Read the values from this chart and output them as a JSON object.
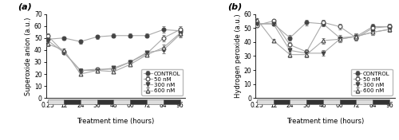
{
  "x_ticks": [
    0.25,
    12,
    24,
    36,
    48,
    60,
    72,
    84,
    96
  ],
  "x_positions": [
    0.25,
    12,
    24,
    36,
    48,
    60,
    72,
    84,
    96
  ],
  "panel_a": {
    "title": "(a)",
    "ylabel": "Superoxide anion (a.u.)",
    "xlabel": "Treatment time (hours)",
    "ylim": [
      0,
      70
    ],
    "yticks": [
      0,
      10,
      20,
      30,
      40,
      50,
      60,
      70
    ],
    "series": {
      "CONTROL": {
        "y": [
          49,
          50,
          47,
          51,
          52,
          52,
          52,
          57,
          56
        ],
        "yerr": [
          1.5,
          1.5,
          1.5,
          1.5,
          1.5,
          1.5,
          1.5,
          2.5,
          2.5
        ],
        "marker": "o",
        "fillstyle": "full",
        "mfc": "#444444",
        "mec": "#444444",
        "line_color": "#aaaaaa"
      },
      "50 nM": {
        "y": [
          52,
          38,
          23,
          24,
          24,
          30,
          37,
          50,
          57
        ],
        "yerr": [
          1.5,
          1.5,
          1.5,
          1.5,
          1.5,
          1.5,
          1.5,
          2.5,
          2.5
        ],
        "marker": "o",
        "fillstyle": "none",
        "mfc": "white",
        "mec": "#444444",
        "line_color": "#aaaaaa"
      },
      "300 nM": {
        "y": [
          48,
          38,
          23,
          23,
          25,
          30,
          38,
          40,
          53
        ],
        "yerr": [
          1.5,
          1.5,
          1.5,
          1.5,
          1.5,
          1.5,
          1.5,
          2.5,
          2.5
        ],
        "marker": "v",
        "fillstyle": "full",
        "mfc": "#444444",
        "mec": "#444444",
        "line_color": "#aaaaaa"
      },
      "600 nM": {
        "y": [
          45,
          40,
          20,
          23,
          22,
          28,
          36,
          42,
          54
        ],
        "yerr": [
          1.5,
          1.5,
          1.5,
          1.5,
          1.5,
          1.5,
          1.5,
          2.5,
          2.5
        ],
        "marker": "^",
        "fillstyle": "none",
        "mfc": "white",
        "mec": "#444444",
        "line_color": "#aaaaaa"
      }
    }
  },
  "panel_b": {
    "title": "(b)",
    "ylabel": "Hydrogen peroxide (a.u.)",
    "xlabel": "Treatment time (hours)",
    "ylim": [
      0,
      60
    ],
    "yticks": [
      0,
      10,
      20,
      30,
      40,
      50,
      60
    ],
    "series": {
      "CONTROL": {
        "y": [
          53,
          53,
          43,
          54,
          53,
          43,
          44,
          51,
          51
        ],
        "yerr": [
          1.0,
          1.0,
          2.0,
          2.0,
          2.0,
          2.0,
          2.0,
          2.0,
          2.0
        ],
        "marker": "o",
        "fillstyle": "full",
        "mfc": "#444444",
        "mec": "#444444",
        "line_color": "#aaaaaa"
      },
      "50 nM": {
        "y": [
          52,
          55,
          38,
          33,
          54,
          51,
          43,
          50,
          51
        ],
        "yerr": [
          1.0,
          1.0,
          2.0,
          2.0,
          2.0,
          2.0,
          2.0,
          2.0,
          2.0
        ],
        "marker": "o",
        "fillstyle": "none",
        "mfc": "white",
        "mec": "#444444",
        "line_color": "#aaaaaa"
      },
      "300 nM": {
        "y": [
          53,
          53,
          34,
          32,
          32,
          42,
          44,
          47,
          49
        ],
        "yerr": [
          1.0,
          1.0,
          2.0,
          2.0,
          2.0,
          2.0,
          2.0,
          2.0,
          2.0
        ],
        "marker": "v",
        "fillstyle": "full",
        "mfc": "#444444",
        "mec": "#444444",
        "line_color": "#aaaaaa"
      },
      "600 nM": {
        "y": [
          56,
          41,
          31,
          31,
          41,
          42,
          44,
          47,
          49
        ],
        "yerr": [
          1.0,
          1.0,
          2.0,
          2.0,
          2.0,
          2.0,
          2.0,
          2.0,
          2.0
        ],
        "marker": "^",
        "fillstyle": "none",
        "mfc": "white",
        "mec": "#444444",
        "line_color": "#aaaaaa"
      }
    }
  },
  "dark_light_bars": [
    {
      "start": 0.25,
      "end": 12,
      "dark": false
    },
    {
      "start": 12,
      "end": 24,
      "dark": true
    },
    {
      "start": 24,
      "end": 36,
      "dark": false
    },
    {
      "start": 36,
      "end": 48,
      "dark": true
    },
    {
      "start": 48,
      "end": 60,
      "dark": false
    },
    {
      "start": 60,
      "end": 72,
      "dark": true
    },
    {
      "start": 72,
      "end": 84,
      "dark": false
    },
    {
      "start": 84,
      "end": 96,
      "dark": true
    }
  ],
  "dark_color": "#333333",
  "light_color": "#dddddd",
  "series_order": [
    "CONTROL",
    "50 nM",
    "300 nM",
    "600 nM"
  ]
}
